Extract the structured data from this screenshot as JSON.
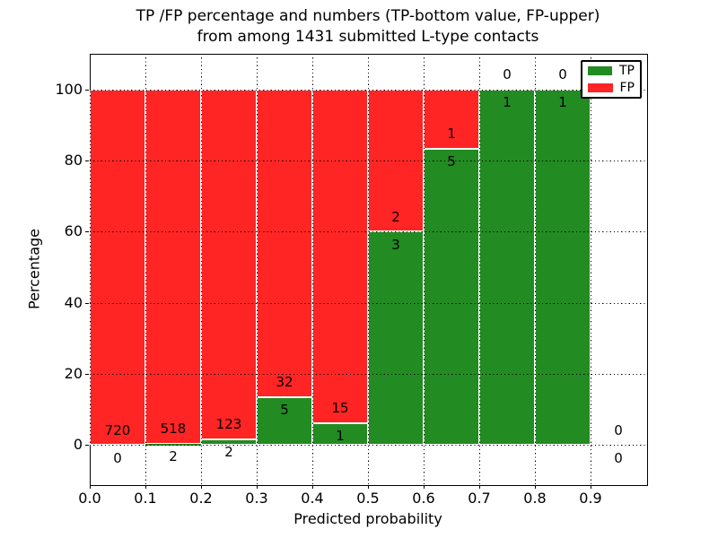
{
  "figure": {
    "title_line1": "TP /FP percentage and numbers (TP-bottom value, FP-upper)",
    "title_line2": "from among 1431 submitted L-type contacts",
    "xlabel": "Predicted probability",
    "ylabel": "Percentage"
  },
  "legend": {
    "items": [
      {
        "label": "TP",
        "color": "#228b22"
      },
      {
        "label": "FP",
        "color": "#ff2525"
      }
    ]
  },
  "colors": {
    "tp": "#228b22",
    "fp": "#ff2525",
    "grid": "#000000",
    "bar_edge": "#ffffff",
    "background": "#ffffff"
  },
  "chart_data": {
    "type": "bar",
    "subtype": "stacked-100-percent",
    "title": "TP /FP percentage and numbers (TP-bottom value, FP-upper) from among 1431 submitted L-type contacts",
    "xlabel": "Predicted probability",
    "ylabel": "Percentage",
    "xlim": [
      0.0,
      1.0
    ],
    "ylim": [
      -11,
      110
    ],
    "xticks": [
      "0.0",
      "0.1",
      "0.2",
      "0.3",
      "0.4",
      "0.5",
      "0.6",
      "0.7",
      "0.8",
      "0.9"
    ],
    "xtick_values": [
      0.0,
      0.1,
      0.2,
      0.3,
      0.4,
      0.5,
      0.6,
      0.7,
      0.8,
      0.9
    ],
    "yticks": [
      0,
      20,
      40,
      60,
      80,
      100
    ],
    "grid": true,
    "legend_position": "upper right",
    "series": [
      {
        "name": "TP",
        "color": "#228b22",
        "stack_position": "bottom"
      },
      {
        "name": "FP",
        "color": "#ff2525",
        "stack_position": "top"
      }
    ],
    "bins": [
      {
        "x0": 0.0,
        "x1": 0.1,
        "tp": 0,
        "fp": 720
      },
      {
        "x0": 0.1,
        "x1": 0.2,
        "tp": 2,
        "fp": 518
      },
      {
        "x0": 0.2,
        "x1": 0.3,
        "tp": 2,
        "fp": 123
      },
      {
        "x0": 0.3,
        "x1": 0.4,
        "tp": 5,
        "fp": 32
      },
      {
        "x0": 0.4,
        "x1": 0.5,
        "tp": 1,
        "fp": 15
      },
      {
        "x0": 0.5,
        "x1": 0.6,
        "tp": 3,
        "fp": 2
      },
      {
        "x0": 0.6,
        "x1": 0.7,
        "tp": 5,
        "fp": 1
      },
      {
        "x0": 0.7,
        "x1": 0.8,
        "tp": 1,
        "fp": 0
      },
      {
        "x0": 0.8,
        "x1": 0.9,
        "tp": 1,
        "fp": 0
      },
      {
        "x0": 0.9,
        "x1": 1.0,
        "tp": 0,
        "fp": 0
      }
    ]
  }
}
